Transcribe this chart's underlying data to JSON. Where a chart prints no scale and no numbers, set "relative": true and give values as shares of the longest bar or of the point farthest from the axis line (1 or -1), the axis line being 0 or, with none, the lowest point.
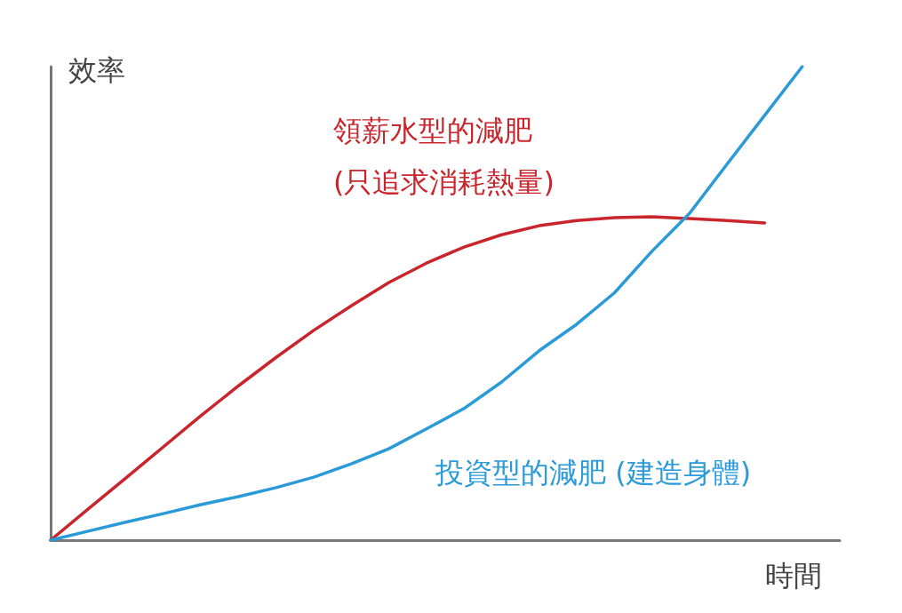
{
  "chart_data": {
    "type": "line",
    "relative": true,
    "xlabel": "時間",
    "ylabel": "效率",
    "categories": [
      null,
      null,
      null,
      null,
      null,
      null,
      null,
      null,
      null,
      null,
      null,
      null,
      null,
      null,
      null,
      null,
      null,
      null,
      null,
      null,
      null,
      null
    ],
    "marker": "none",
    "line_style": "solid",
    "grid": false,
    "legend": false,
    "series": [
      {
        "name": "領薪水型的減肥 (只追求消耗熱量)",
        "color": "#c9252c",
        "values": [
          0,
          0.066,
          0.131,
          0.197,
          0.263,
          0.326,
          0.386,
          0.443,
          0.495,
          0.544,
          0.585,
          0.619,
          0.645,
          0.664,
          0.675,
          0.681,
          0.683,
          0.679,
          0.675,
          0.67,
          null,
          null
        ]
      },
      {
        "name": "投資型的減肥 (建造身體)",
        "color": "#2a9ad8",
        "values": [
          0,
          0.019,
          0.038,
          0.056,
          0.075,
          0.092,
          0.111,
          0.133,
          0.161,
          0.193,
          0.235,
          0.278,
          0.334,
          0.4,
          0.456,
          0.522,
          0.61,
          0.69,
          0.794,
          0.897,
          1,
          null
        ]
      }
    ]
  }
}
